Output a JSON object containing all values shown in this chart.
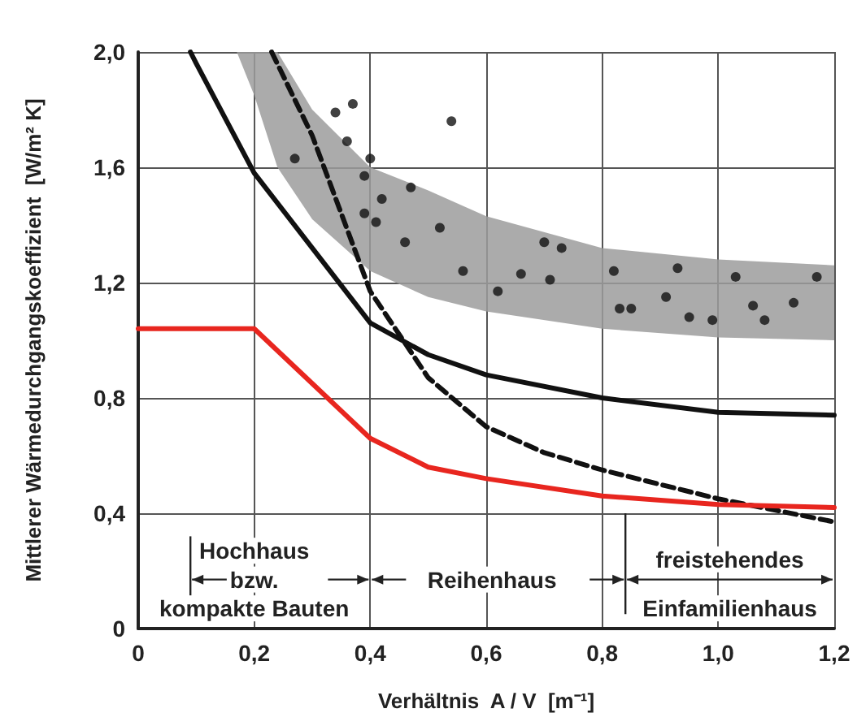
{
  "chart_data": {
    "type": "line",
    "xlabel": "Verhältnis  A / V  [m⁻¹]",
    "ylabel": "Mittlerer Wärmedurchgangskoeffizient  [W/m² K]",
    "xlim": [
      0,
      1.2
    ],
    "ylim": [
      0,
      2.0
    ],
    "xticks": [
      0,
      {
        "value": 0.2,
        "label": "0,2"
      },
      {
        "value": 0.4,
        "label": "0,4"
      },
      {
        "value": 0.6,
        "label": "0,6"
      },
      {
        "value": 0.8,
        "label": "0,8"
      },
      {
        "value": 1.0,
        "label": "1,0"
      },
      {
        "value": 1.2,
        "label": "1,2"
      }
    ],
    "yticks": [
      0,
      {
        "value": 0.4,
        "label": "0,4"
      },
      {
        "value": 0.8,
        "label": "0,8"
      },
      {
        "value": 1.2,
        "label": "1,2"
      },
      {
        "value": 1.6,
        "label": "1,6"
      },
      {
        "value": 2.0,
        "label": "2,0"
      }
    ],
    "grid": true,
    "series": [
      {
        "color": "#9c9c9c",
        "x": [
          0.17,
          0.2,
          0.24,
          0.3,
          0.4,
          0.5,
          0.6,
          0.8,
          1.0,
          1.2
        ],
        "values": [
          null,
          null,
          null,
          null,
          null,
          null,
          null,
          null,
          null,
          null
        ],
        "lower": [
          2.0,
          1.85,
          1.6,
          1.42,
          1.24,
          1.15,
          1.1,
          1.04,
          1.01,
          1.0
        ],
        "upper": [
          2.0,
          2.0,
          2.0,
          1.8,
          1.6,
          1.52,
          1.43,
          1.32,
          1.28,
          1.26
        ]
      },
      {
        "type": "scatter",
        "color": "#111111",
        "marker": "circle",
        "x": [
          0.37,
          0.34,
          0.54,
          0.36,
          0.27,
          0.4,
          0.39,
          0.47,
          0.42,
          0.39,
          0.41,
          0.52,
          0.46,
          0.7,
          0.73,
          0.56,
          0.66,
          0.71,
          0.82,
          0.93,
          1.03,
          1.17,
          0.62,
          0.91,
          0.83,
          0.85,
          1.06,
          1.13,
          0.95,
          0.99,
          1.08
        ],
        "values": [
          1.82,
          1.79,
          1.76,
          1.69,
          1.63,
          1.63,
          1.57,
          1.53,
          1.49,
          1.44,
          1.41,
          1.39,
          1.34,
          1.34,
          1.32,
          1.24,
          1.23,
          1.21,
          1.24,
          1.25,
          1.22,
          1.22,
          1.17,
          1.15,
          1.11,
          1.11,
          1.12,
          1.13,
          1.08,
          1.07,
          1.07
        ]
      },
      {
        "type": "line",
        "color": "#111111",
        "line_style": "solid",
        "marker": "none",
        "x": [
          0.09,
          0.1,
          0.2,
          0.3,
          0.4,
          0.5,
          0.6,
          0.8,
          1.0,
          1.2
        ],
        "values": [
          2.0,
          1.96,
          1.58,
          1.32,
          1.06,
          0.95,
          0.88,
          0.8,
          0.75,
          0.74
        ]
      },
      {
        "type": "line",
        "color": "#111111",
        "line_style": "dashed",
        "marker": "none",
        "x": [
          0.23,
          0.3,
          0.4,
          0.5,
          0.6,
          0.7,
          0.8,
          1.0,
          1.2
        ],
        "values": [
          2.0,
          1.71,
          1.17,
          0.87,
          0.7,
          0.61,
          0.55,
          0.45,
          0.37
        ]
      },
      {
        "type": "line",
        "color": "#e8261f",
        "line_style": "solid",
        "marker": "none",
        "x": [
          0,
          0.2,
          0.3,
          0.4,
          0.5,
          0.6,
          0.8,
          1.0,
          1.2
        ],
        "values": [
          1.04,
          1.04,
          0.85,
          0.66,
          0.56,
          0.52,
          0.46,
          0.43,
          0.42
        ]
      }
    ],
    "annotations": [
      "Hochhaus",
      "bzw.",
      "kompakte Bauten",
      "Reihenhaus",
      "freistehendes",
      "Einfamilienhaus"
    ]
  }
}
